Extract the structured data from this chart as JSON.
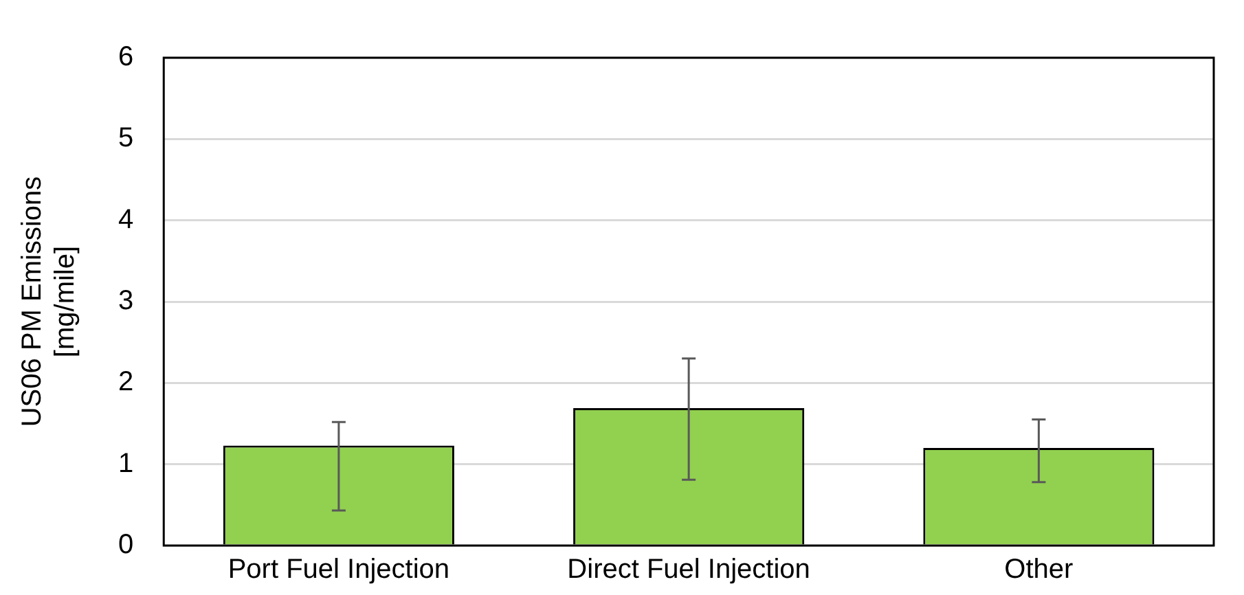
{
  "chart_data": {
    "type": "bar",
    "ylabel": "US06 PM Emissions\n[mg/mile]",
    "categories": [
      "Port Fuel Injection",
      "Direct Fuel Injection",
      "Other"
    ],
    "values": [
      1.23,
      1.69,
      1.2
    ],
    "color": "#92d050",
    "errors": [
      [
        0.43,
        1.52
      ],
      [
        0.81,
        2.3
      ],
      [
        0.78,
        1.55
      ]
    ],
    "ylim": [
      0,
      6
    ],
    "yticks": [
      0,
      1,
      2,
      3,
      4,
      5,
      6
    ],
    "grid": "y",
    "legend": false
  }
}
